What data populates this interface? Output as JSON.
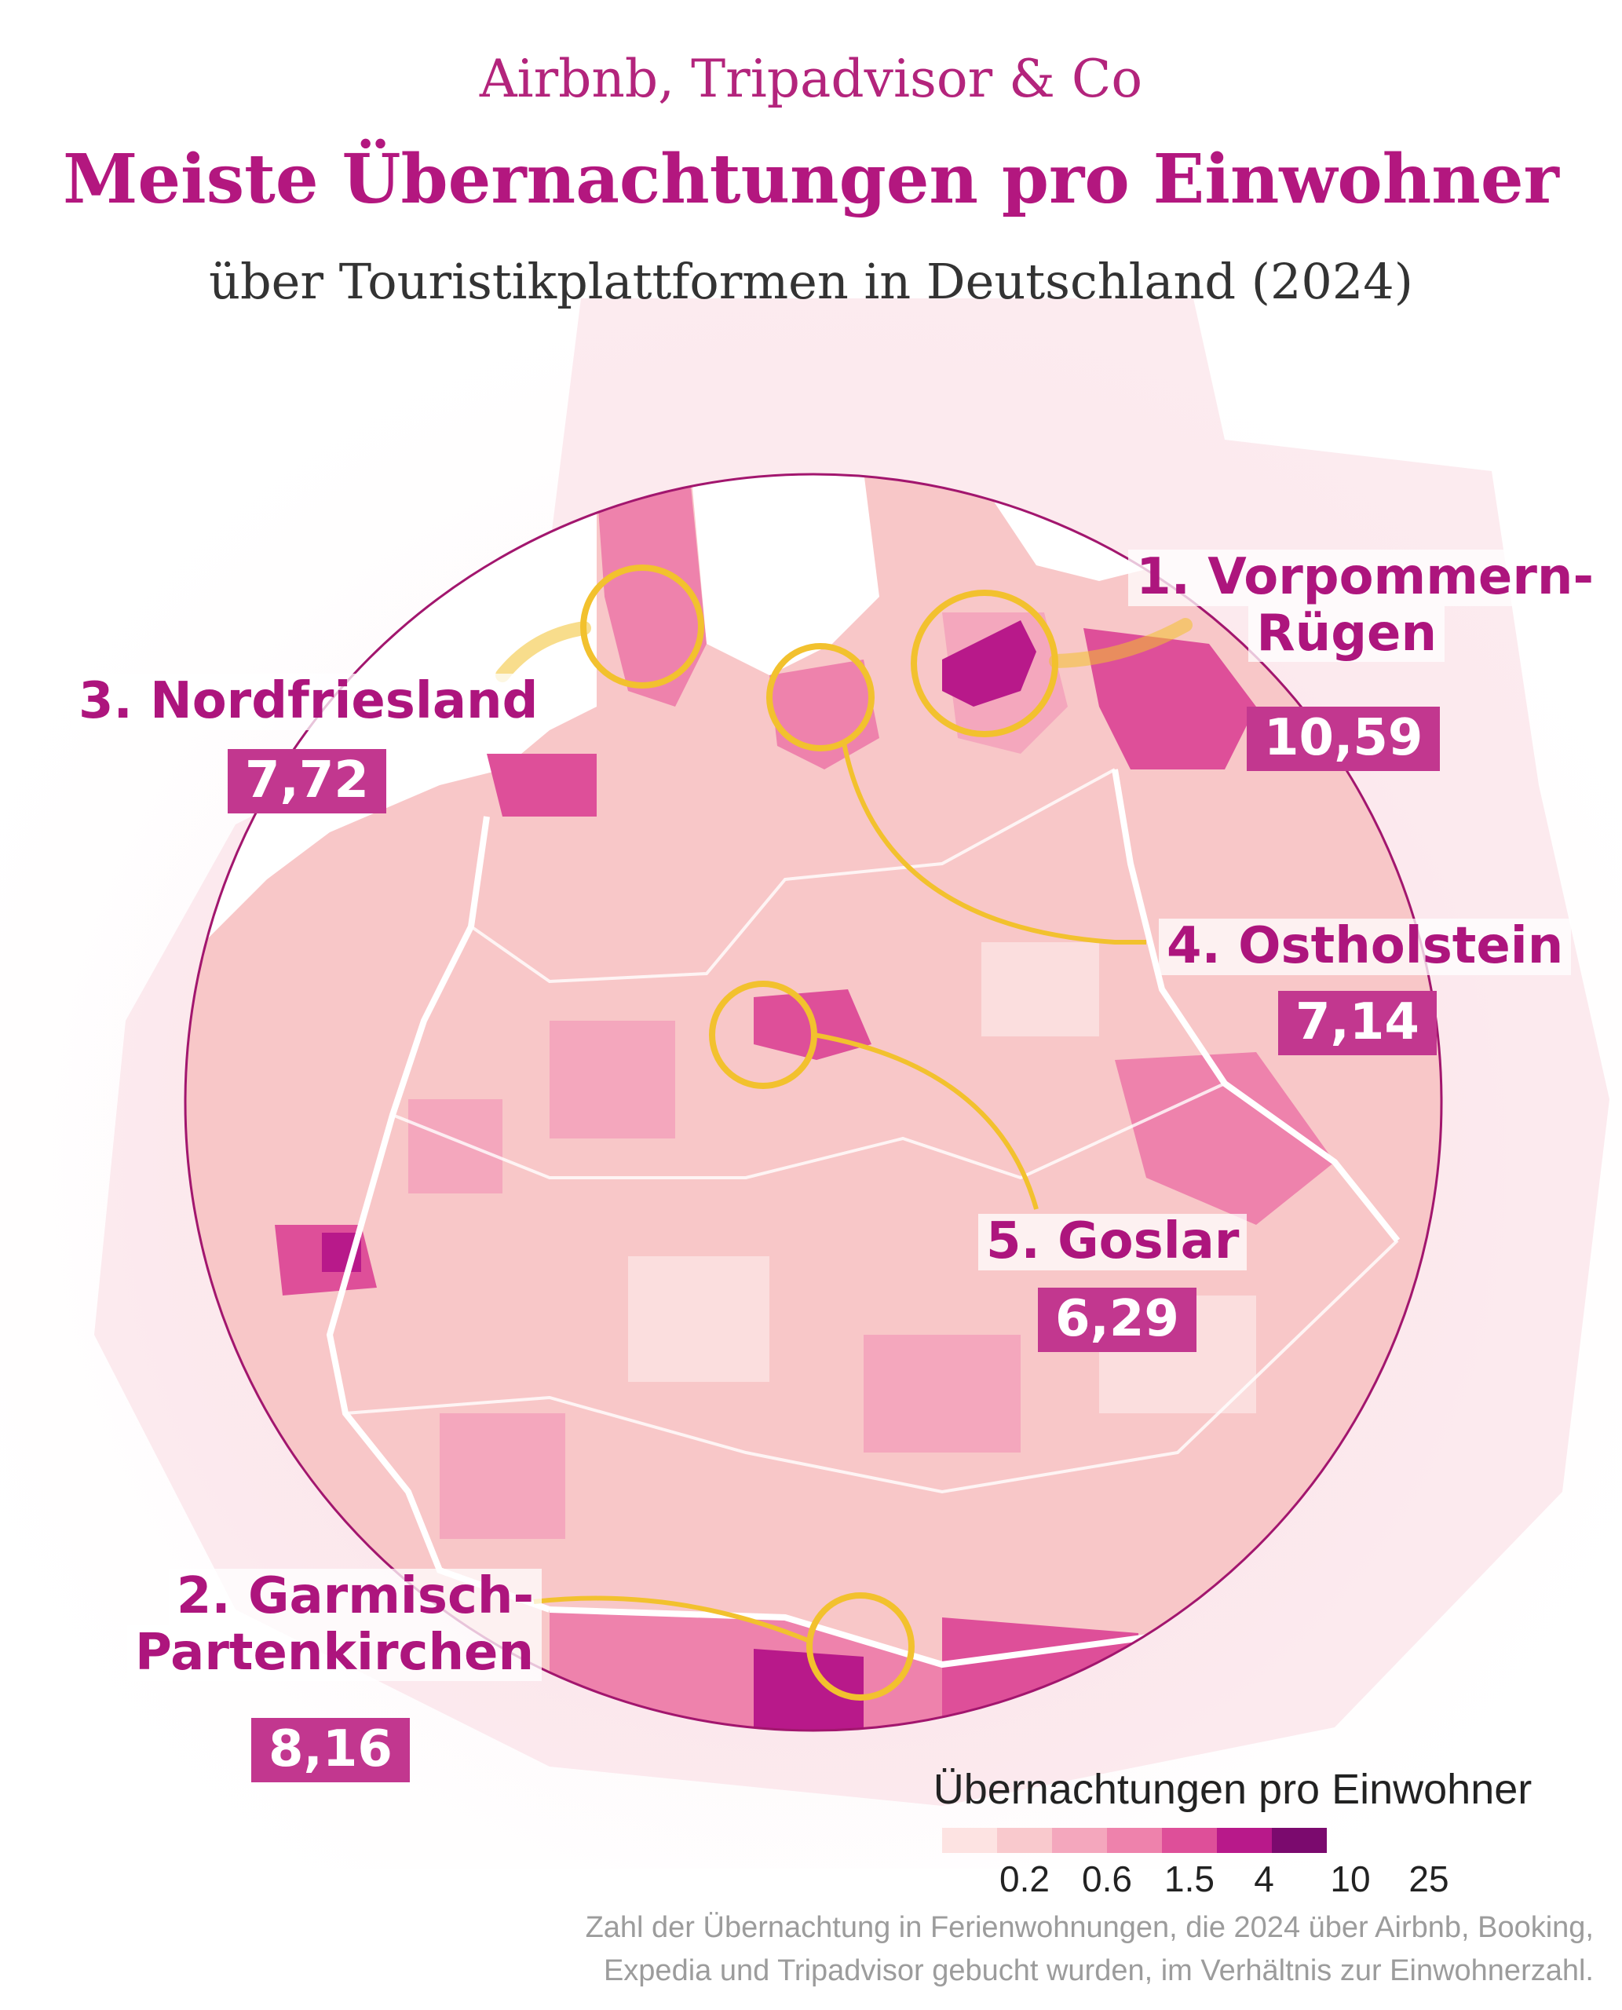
{
  "header": {
    "kicker": "Airbnb, Tripadvisor & Co",
    "title": "Meiste Übernachtungen pro Einwohner",
    "subtitle": "über Touristikplattformen in Deutschland (2024)"
  },
  "rankings": [
    {
      "rank_label_line1": "1. Vorpommern-",
      "rank_label_line2": "Rügen",
      "value": "10,59"
    },
    {
      "rank_label_line1": "2. Garmisch-",
      "rank_label_line2": "Partenkirchen",
      "value": "8,16"
    },
    {
      "rank_label_line1": "3. Nordfriesland",
      "rank_label_line2": "",
      "value": "7,72"
    },
    {
      "rank_label_line1": "4. Ostholstein",
      "rank_label_line2": "",
      "value": "7,14"
    },
    {
      "rank_label_line1": "5. Goslar",
      "rank_label_line2": "",
      "value": "6,29"
    }
  ],
  "legend": {
    "title": "Übernachtungen pro Einwohner",
    "ticks": [
      "0.2",
      "0.6",
      "1.5",
      "4",
      "10",
      "25"
    ],
    "colors": [
      "#fde3e2",
      "#f9c9cd",
      "#f4a7bd",
      "#ee82ac",
      "#de4f99",
      "#b8198a",
      "#7b0a6e"
    ]
  },
  "source": {
    "line1": "Zahl der Übernachtung in Ferienwohnungen, die 2024 über Airbnb, Booking,",
    "line2": "Expedia und Tripadvisor gebucht wurden, im Verhältnis zur Einwohnerzahl."
  },
  "colors": {
    "accent": "#b3177f",
    "highlight_ring": "#f2c12e",
    "value_box": "#c2378f"
  }
}
